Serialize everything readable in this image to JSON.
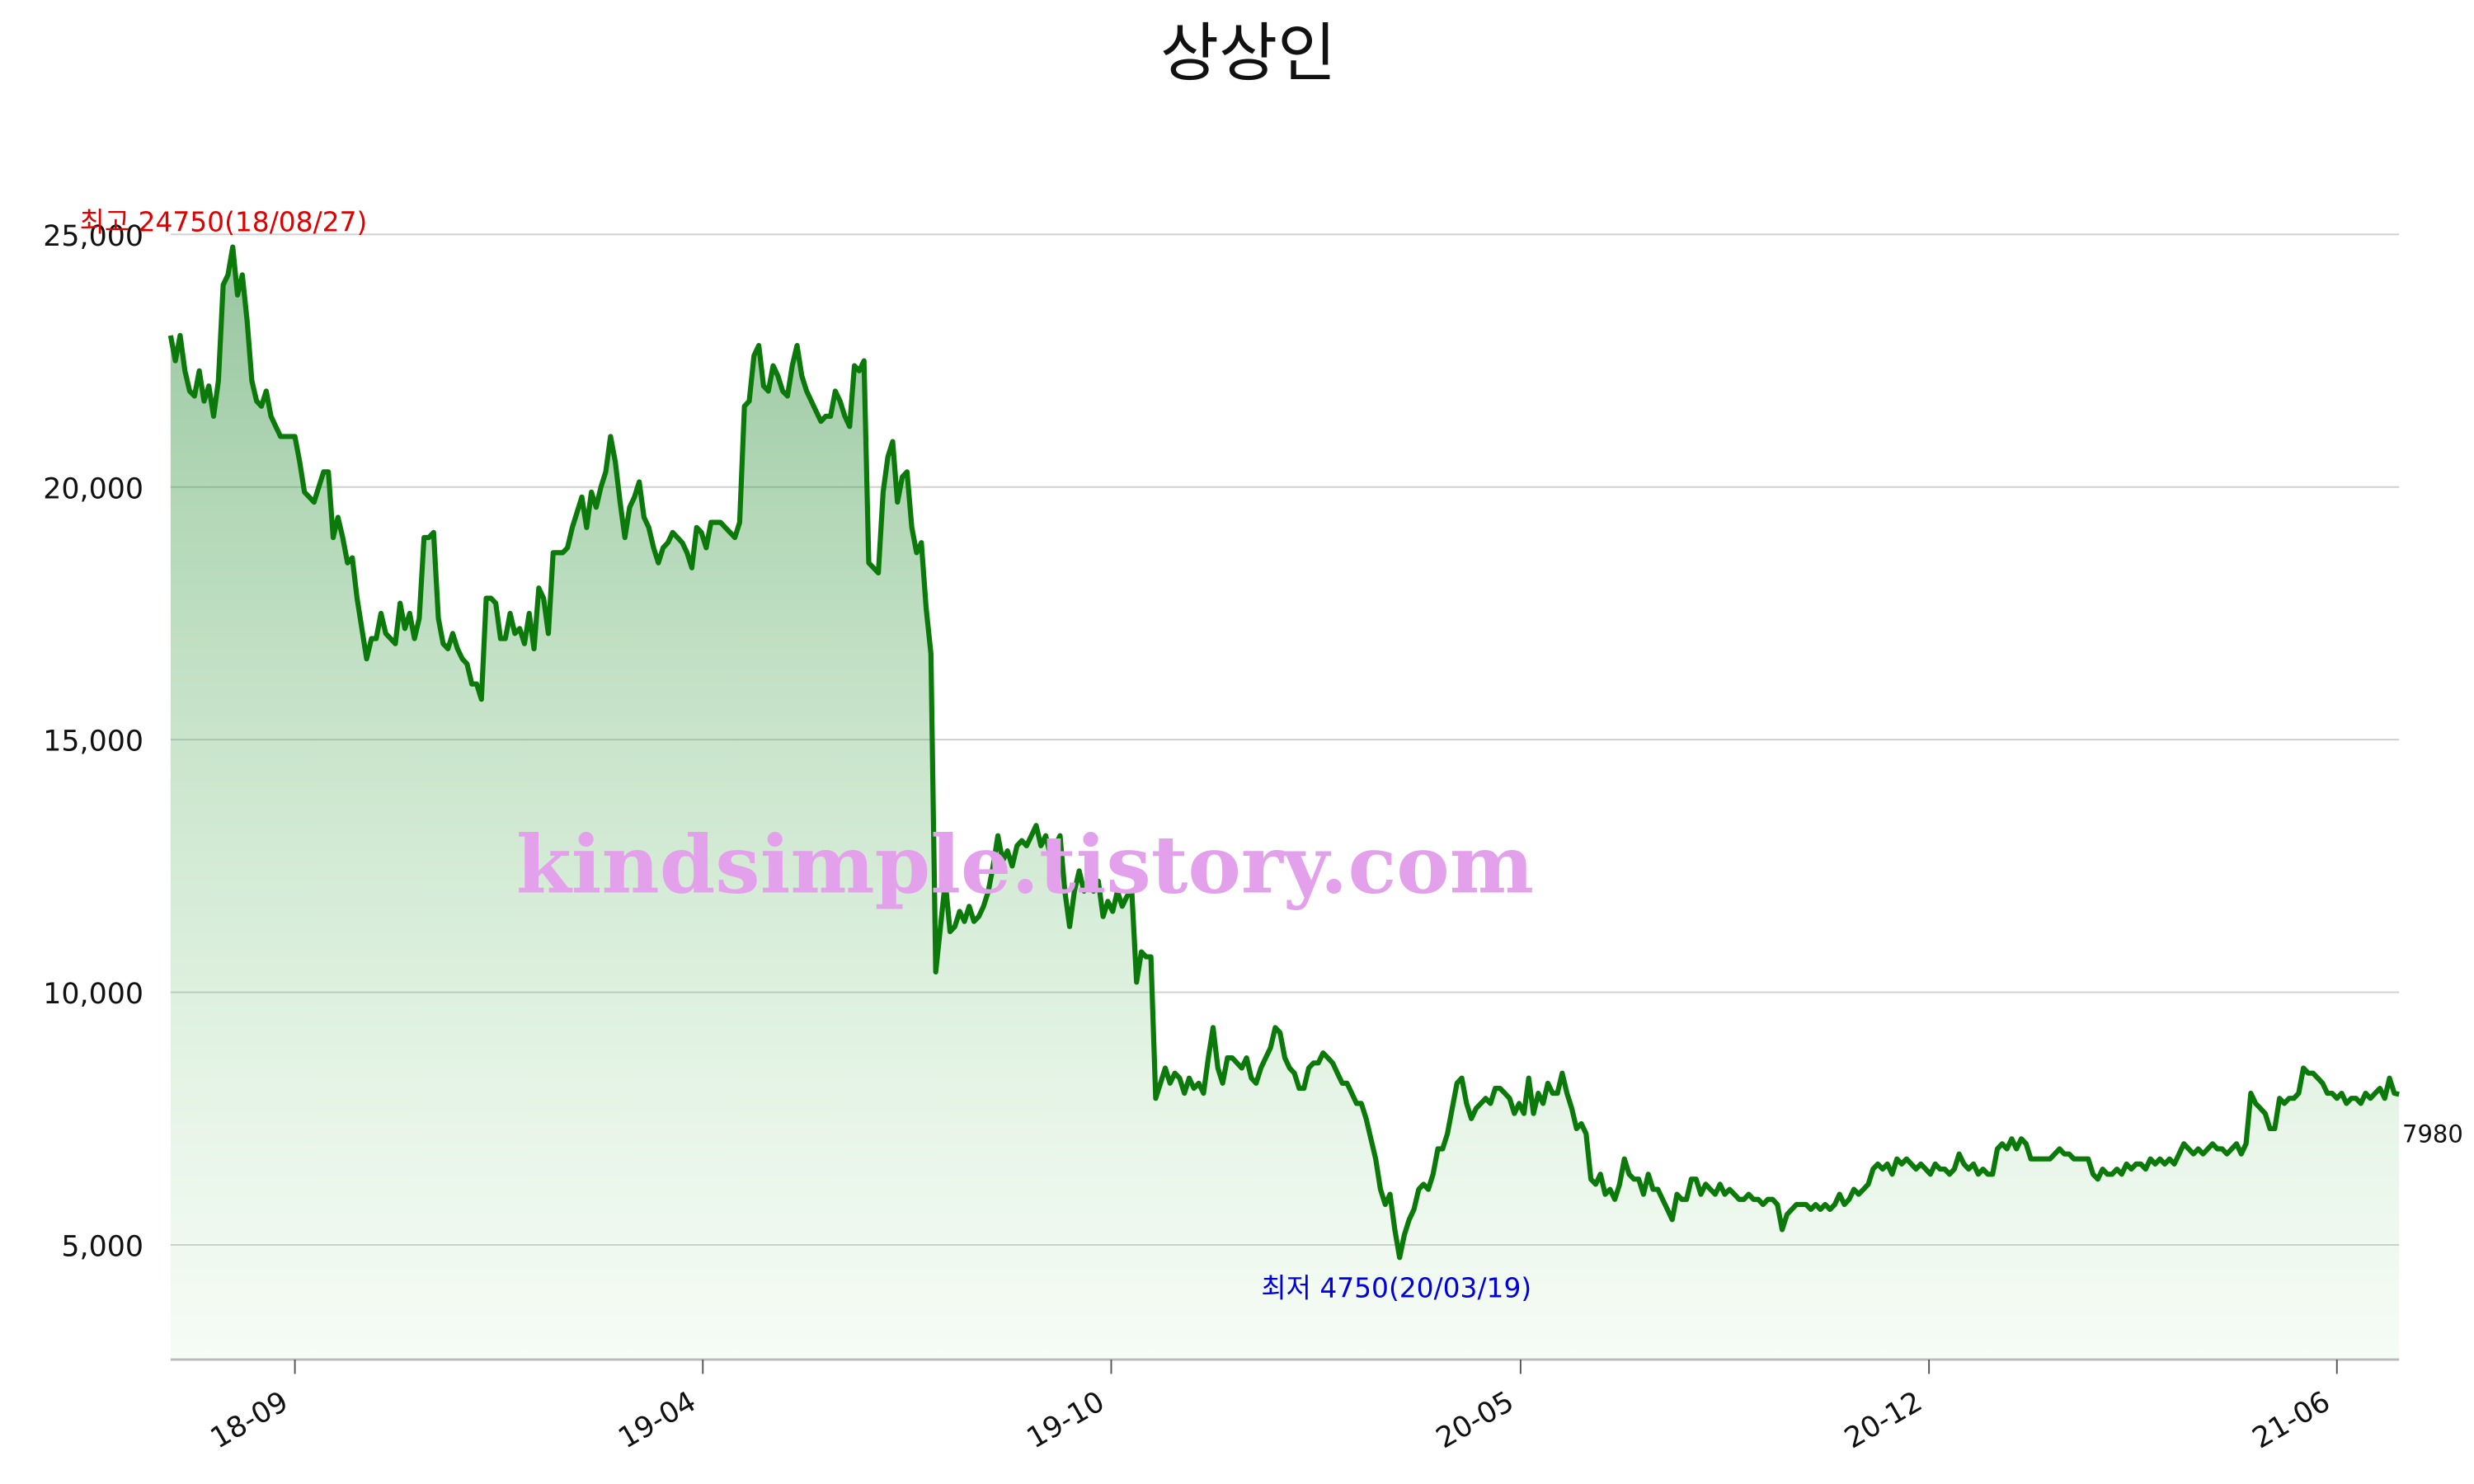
{
  "chart_data": {
    "type": "line",
    "title": "상상인",
    "x": [
      0,
      1,
      2,
      3,
      4,
      5,
      6,
      7,
      8,
      9,
      10,
      11,
      12,
      13,
      14,
      15,
      16,
      17,
      18,
      19,
      20,
      21,
      22,
      23,
      24,
      25,
      26,
      27,
      28,
      29,
      30,
      31,
      32,
      33,
      34,
      35,
      36,
      37,
      38,
      39,
      40,
      41,
      42,
      43,
      44,
      45,
      46,
      47,
      48,
      49,
      50,
      51,
      52,
      53,
      54,
      55,
      56,
      57,
      58,
      59,
      60,
      61,
      62,
      63,
      64,
      65,
      66,
      67,
      68,
      69,
      70,
      71,
      72,
      73,
      74,
      75,
      76,
      77,
      78,
      79,
      80,
      81,
      82,
      83,
      84,
      85,
      86,
      87,
      88,
      89,
      90,
      91,
      92,
      93,
      94,
      95,
      96,
      97,
      98,
      99,
      100,
      101,
      102,
      103,
      104,
      105,
      106,
      107,
      108,
      109,
      110,
      111,
      112,
      113,
      114,
      115,
      116,
      117,
      118,
      119,
      120,
      121,
      122,
      123,
      124,
      125,
      126,
      127,
      128,
      129,
      130,
      131,
      132,
      133,
      134,
      135,
      136,
      137,
      138,
      139,
      140,
      141,
      142,
      143,
      144,
      145,
      146,
      147,
      148,
      149,
      150,
      151,
      152,
      153,
      154,
      155,
      156,
      157,
      158,
      159,
      160,
      161,
      162,
      163,
      164,
      165,
      166,
      167,
      168,
      169,
      170,
      171,
      172,
      173,
      174,
      175,
      176,
      177,
      178,
      179,
      180,
      181,
      182,
      183,
      184,
      185,
      186,
      187,
      188,
      189,
      190,
      191,
      192,
      193,
      194,
      195,
      196,
      197,
      198,
      199,
      200,
      201,
      202,
      203,
      204,
      205,
      206,
      207,
      208,
      209,
      210,
      211,
      212,
      213,
      214,
      215,
      216,
      217,
      218,
      219,
      220,
      221,
      222,
      223,
      224,
      225,
      226,
      227,
      228,
      229,
      230,
      231,
      232,
      233,
      234,
      235,
      236,
      237,
      238,
      239,
      240,
      241,
      242,
      243,
      244,
      245,
      246,
      247,
      248,
      249,
      250,
      251,
      252,
      253,
      254,
      255,
      256,
      257,
      258,
      259,
      260,
      261,
      262,
      263,
      264,
      265,
      266,
      267,
      268,
      269,
      270,
      271,
      272,
      273,
      274,
      275,
      276,
      277,
      278,
      279,
      280,
      281,
      282,
      283,
      284,
      285,
      286,
      287,
      288,
      289,
      290,
      291,
      292,
      293,
      294,
      295,
      296,
      297,
      298,
      299,
      300,
      301,
      302,
      303,
      304,
      305,
      306,
      307,
      308,
      309,
      310,
      311,
      312,
      313,
      314,
      315,
      316,
      317,
      318,
      319,
      320,
      321,
      322,
      323,
      324,
      325,
      326,
      327,
      328,
      329,
      330,
      331,
      332,
      333,
      334,
      335,
      336,
      337,
      338,
      339,
      340,
      341,
      342,
      343,
      344,
      345,
      346,
      347,
      348,
      349,
      350,
      351,
      352,
      353,
      354,
      355,
      356,
      357,
      358,
      359,
      360,
      361,
      362,
      363,
      364,
      365,
      366,
      367,
      368,
      369,
      370,
      371,
      372,
      373,
      374,
      375,
      376,
      377,
      378,
      379,
      380,
      381,
      382,
      383,
      384,
      385,
      386,
      387,
      388,
      389,
      390,
      391,
      392,
      393,
      394,
      395,
      396,
      397,
      398,
      399,
      400,
      401,
      402,
      403,
      404,
      405,
      406,
      407,
      408,
      409,
      410,
      411,
      412,
      413,
      414,
      415,
      416,
      417,
      418,
      419,
      420,
      421,
      422,
      423,
      424,
      425,
      426,
      427,
      428,
      429,
      430,
      431,
      432,
      433,
      434,
      435,
      436,
      437,
      438,
      439,
      440,
      441,
      442,
      443,
      444,
      445,
      446,
      447,
      448,
      449,
      450,
      451,
      452,
      453,
      454,
      455,
      456,
      457,
      458,
      459,
      460,
      461,
      462,
      463,
      464,
      465,
      466
    ],
    "series": [
      {
        "color": "#0b7a0b",
        "values": [
          23000,
          22500,
          23000,
          22300,
          21900,
          21800,
          22300,
          21700,
          22000,
          21400,
          22100,
          24000,
          24200,
          24750,
          23800,
          24200,
          23300,
          22100,
          21700,
          21600,
          21900,
          21400,
          21200,
          21000,
          21000,
          21000,
          21000,
          20500,
          19900,
          19800,
          19700,
          20000,
          20300,
          20300,
          19000,
          19400,
          19000,
          18500,
          18600,
          17800,
          17200,
          16600,
          17000,
          17000,
          17500,
          17100,
          17000,
          16900,
          17700,
          17200,
          17500,
          17000,
          17400,
          19000,
          19000,
          19100,
          17400,
          16900,
          16800,
          17100,
          16800,
          16600,
          16500,
          16100,
          16100,
          15800,
          17800,
          17800,
          17700,
          17000,
          17000,
          17500,
          17100,
          17200,
          16900,
          17500,
          16800,
          18000,
          17800,
          17100,
          18700,
          18700,
          18700,
          18800,
          19200,
          19500,
          19800,
          19200,
          19900,
          19600,
          20000,
          20300,
          21000,
          20500,
          19700,
          19000,
          19600,
          19800,
          20100,
          19400,
          19200,
          18800,
          18500,
          18800,
          18900,
          19100,
          19000,
          18900,
          18700,
          18400,
          19200,
          19100,
          18800,
          19300,
          19300,
          19300,
          19200,
          19100,
          19000,
          19300,
          21600,
          21700,
          22600,
          22800,
          22000,
          21900,
          22400,
          22200,
          21900,
          21800,
          22400,
          22800,
          22200,
          21900,
          21700,
          21500,
          21300,
          21400,
          21400,
          21900,
          21700,
          21400,
          21200,
          22400,
          22300,
          22500,
          18500,
          18400,
          18300,
          19900,
          20600,
          20900,
          19700,
          20200,
          20300,
          19200,
          18700,
          18900,
          17600,
          16700,
          10400,
          11300,
          12200,
          11200,
          11300,
          11600,
          11400,
          11700,
          11400,
          11500,
          11700,
          12000,
          12500,
          13100,
          12600,
          12800,
          12500,
          12900,
          13000,
          12900,
          13100,
          13300,
          12900,
          13100,
          12700,
          12900,
          13100,
          12000,
          11300,
          12000,
          12400,
          12000,
          12200,
          12000,
          12200,
          11500,
          11800,
          11600,
          12000,
          11700,
          11900,
          12000,
          10200,
          10800,
          10700,
          10700,
          7900,
          8200,
          8500,
          8200,
          8400,
          8300,
          8000,
          8300,
          8100,
          8200,
          8000,
          8700,
          9300,
          8500,
          8200,
          8700,
          8700,
          8600,
          8500,
          8700,
          8300,
          8200,
          8500,
          8700,
          8900,
          9300,
          9200,
          8700,
          8500,
          8400,
          8100,
          8100,
          8500,
          8600,
          8600,
          8800,
          8700,
          8600,
          8400,
          8200,
          8200,
          8000,
          7800,
          7800,
          7500,
          7100,
          6700,
          6100,
          5800,
          6000,
          5300,
          4750,
          5200,
          5500,
          5700,
          6100,
          6200,
          6100,
          6400,
          6900,
          6900,
          7200,
          7700,
          8200,
          8300,
          7800,
          7500,
          7700,
          7800,
          7900,
          7800,
          8100,
          8100,
          8000,
          7900,
          7600,
          7800,
          7600,
          8300,
          7600,
          8000,
          7800,
          8200,
          8000,
          8000,
          8400,
          8000,
          7700,
          7300,
          7400,
          7200,
          6300,
          6200,
          6400,
          6000,
          6100,
          5900,
          6200,
          6700,
          6400,
          6300,
          6300,
          6000,
          6400,
          6100,
          6100,
          5900,
          5700,
          5500,
          6000,
          5900,
          5900,
          6300,
          6300,
          6000,
          6200,
          6100,
          6000,
          6200,
          6000,
          6100,
          6000,
          5900,
          5900,
          6000,
          5900,
          5900,
          5800,
          5900,
          5900,
          5800,
          5300,
          5600,
          5700,
          5800,
          5800,
          5800,
          5700,
          5800,
          5700,
          5800,
          5700,
          5800,
          6000,
          5800,
          5900,
          6100,
          6000,
          6100,
          6200,
          6500,
          6600,
          6500,
          6600,
          6400,
          6700,
          6600,
          6700,
          6600,
          6500,
          6600,
          6500,
          6400,
          6600,
          6500,
          6500,
          6400,
          6500,
          6800,
          6600,
          6500,
          6600,
          6400,
          6500,
          6400,
          6400,
          6900,
          7000,
          6900,
          7100,
          6900,
          7100,
          7000,
          6700,
          6700,
          6700,
          6700,
          6700,
          6800,
          6900,
          6800,
          6800,
          6700,
          6700,
          6700,
          6700,
          6400,
          6300,
          6500,
          6400,
          6400,
          6500,
          6400,
          6600,
          6500,
          6600,
          6600,
          6500,
          6700,
          6600,
          6700,
          6600,
          6700,
          6600,
          6800,
          7000,
          6900,
          6800,
          6900,
          6800,
          6900,
          7000,
          6900,
          6900,
          6800,
          6900,
          7000,
          6800,
          7000,
          8000,
          7800,
          7700,
          7600,
          7300,
          7300,
          7900,
          7800,
          7900,
          7900,
          8000,
          8500,
          8400,
          8400,
          8300,
          8200,
          8000,
          8000,
          7900,
          8000,
          7800,
          7900,
          7900,
          7800,
          8000,
          7900,
          8000,
          8100,
          7900,
          8300,
          8000,
          7980
        ]
      }
    ],
    "xlim": [
      0,
      466
    ],
    "xticks": [
      {
        "value": 26,
        "label": "18-09"
      },
      {
        "value": 111.3,
        "label": "19-04"
      },
      {
        "value": 196.7,
        "label": "19-10"
      },
      {
        "value": 282.3,
        "label": "20-05"
      },
      {
        "value": 367.7,
        "label": "20-12"
      },
      {
        "value": 453,
        "label": "21-06"
      }
    ],
    "ylim": [
      2730,
      25000
    ],
    "yticks": [
      {
        "value": 5000,
        "label": "5,000"
      },
      {
        "value": 10000,
        "label": "10,000"
      },
      {
        "value": 15000,
        "label": "15,000"
      },
      {
        "value": 20000,
        "label": "20,000"
      },
      {
        "value": 25000,
        "label": "25,000"
      }
    ],
    "grid": true,
    "annotations": [
      {
        "text": "최고 24750(18/08/27)",
        "color": "#e00000"
      },
      {
        "text": "최저 4750(20/03/19)",
        "color": "#0000e0"
      }
    ],
    "watermark": {
      "text": "kindsimple.tistory.com",
      "color": "#e3a0eb"
    }
  }
}
